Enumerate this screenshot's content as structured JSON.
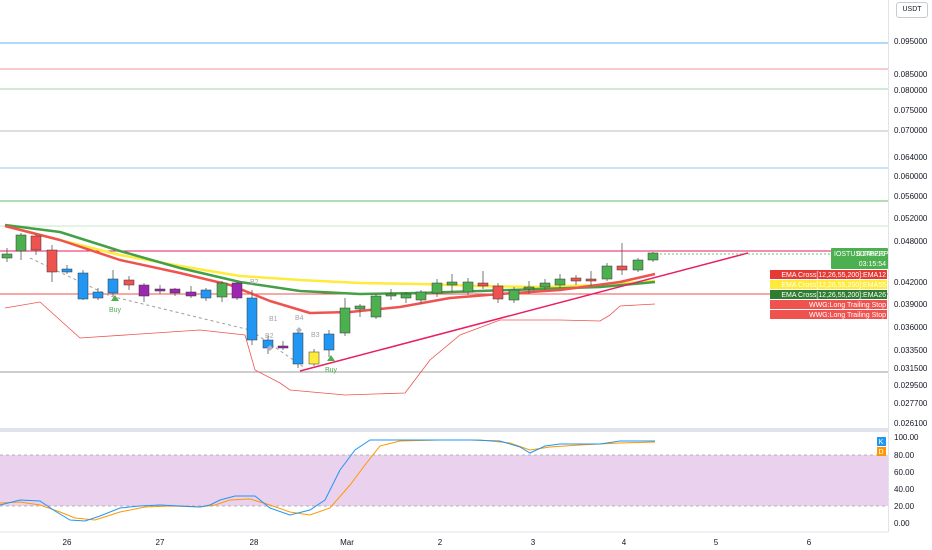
{
  "currency_button": "USDT",
  "symbol_tag": "IOSTUSDTPERP",
  "last_price": "0.046227",
  "countdown": "03:15:54",
  "price_axis_labels": [
    "0.095000",
    "0.085000",
    "0.080000",
    "0.075000",
    "0.070000",
    "0.064000",
    "0.060000",
    "0.056000",
    "0.052000",
    "0.048000",
    "0.042000",
    "0.039000",
    "0.036000",
    "0.033500",
    "0.031500",
    "0.029500",
    "0.027700",
    "0.026100"
  ],
  "osc_axis_labels": [
    "100.00",
    "80.00",
    "60.00",
    "40.00",
    "20.00",
    "0.00"
  ],
  "x_axis_labels": [
    "26",
    "27",
    "28",
    "Mar",
    "2",
    "3",
    "4",
    "5",
    "6"
  ],
  "legend_tags": [
    {
      "text": "EMA Cross[12,26,55,200]:EMA12",
      "color": "#e53935",
      "textColor": "#ffffff"
    },
    {
      "text": "EMA Cross[12,26,55,200]:EMA55",
      "color": "#ffeb3b",
      "textColor": "#131722"
    },
    {
      "text": "EMA Cross[12,26,55,200]:EMA26",
      "color": "#2e7d32",
      "textColor": "#ffffff"
    },
    {
      "text": "WWG:Long Trailing Stop",
      "color": "#ef5350",
      "textColor": "#ffffff"
    },
    {
      "text": "WWG:Long Trailing Stop",
      "color": "#ef5350",
      "textColor": "#ffffff"
    }
  ],
  "signals": [
    {
      "text": "Buy"
    },
    {
      "text": "Buy"
    }
  ],
  "ghost_labels": [
    "B2",
    "B2",
    "B4",
    "B3",
    "B1"
  ],
  "osc_markers": [
    "K",
    "D"
  ],
  "colors": {
    "bull": "#4caf50",
    "bear": "#ef5350",
    "purple": "#9c27b0",
    "blue": "#2196f3",
    "ema12": "#ef5350",
    "ema55": "#ffeb3b",
    "ema26": "#43a047",
    "trend": "#e91e63",
    "k_line": "#2196f3",
    "d_line": "#ff9800",
    "osc_fill": "#e1bee7"
  }
}
